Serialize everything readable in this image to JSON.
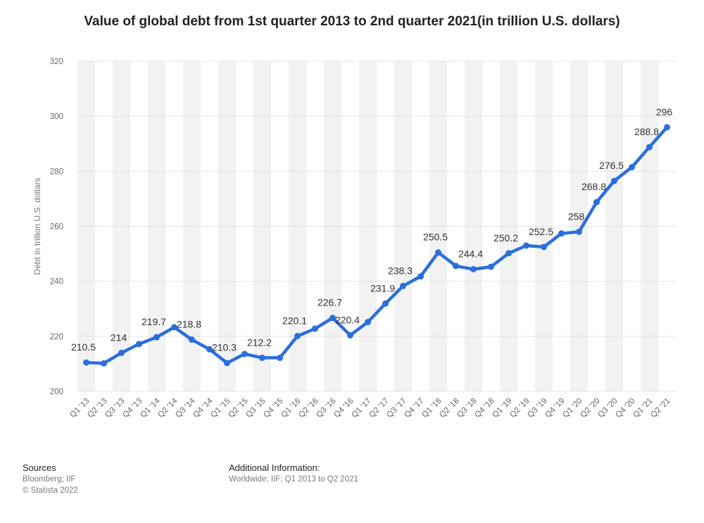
{
  "title": "Value of global debt from 1st quarter 2013 to 2nd quarter 2021(in trillion U.S. dollars)",
  "footer": {
    "sources_heading": "Sources",
    "sources_text": "Bloomberg; IIF",
    "copyright": "© Statista 2022",
    "additional_heading": "Additional Information:",
    "additional_text": "Worldwide; IIF; Q1 2013 to Q2 2021"
  },
  "chart_data": {
    "type": "line",
    "title": "Value of global debt from 1st quarter 2013 to 2nd quarter 2021(in trillion U.S. dollars)",
    "xlabel": "",
    "ylabel": "Debt in trillion U.S. dollars",
    "ylim": [
      200,
      320
    ],
    "yticks": [
      200,
      220,
      240,
      260,
      280,
      300,
      320
    ],
    "grid": true,
    "line_color": "#2a6fdb",
    "categories": [
      "Q1 '13",
      "Q2 '13",
      "Q3 '13",
      "Q4 '13",
      "Q1 '14",
      "Q2 '14",
      "Q3 '14",
      "Q4 '14",
      "Q1 '15",
      "Q2 '15",
      "Q3 '15",
      "Q4 '15",
      "Q1 '16",
      "Q2 '16",
      "Q3 '16",
      "Q4 '16",
      "Q1 '17",
      "Q2 '17",
      "Q3 '17",
      "Q4 '17",
      "Q1 '18",
      "Q2 '18",
      "Q3 '18",
      "Q4 '18",
      "Q1 '19",
      "Q2 '19",
      "Q3 '19",
      "Q4 '19",
      "Q1 '20",
      "Q2 '20",
      "Q3 '20",
      "Q4 '20",
      "Q1 '21",
      "Q2 '21"
    ],
    "values": [
      210.5,
      210.2,
      214,
      217.2,
      219.7,
      223.3,
      218.8,
      215.3,
      210.3,
      213.6,
      212.2,
      212.2,
      220.1,
      222.8,
      226.7,
      220.4,
      225.2,
      231.9,
      238.3,
      241.8,
      250.5,
      245.6,
      244.4,
      245.3,
      250.2,
      253,
      252.5,
      257.4,
      258,
      268.8,
      276.5,
      281.5,
      288.8,
      296
    ],
    "data_labels": [
      {
        "index": 0,
        "text": "210.5"
      },
      {
        "index": 2,
        "text": "214"
      },
      {
        "index": 4,
        "text": "219.7"
      },
      {
        "index": 6,
        "text": "218.8"
      },
      {
        "index": 8,
        "text": "210.3"
      },
      {
        "index": 10,
        "text": "212.2"
      },
      {
        "index": 12,
        "text": "220.1"
      },
      {
        "index": 14,
        "text": "226.7"
      },
      {
        "index": 15,
        "text": "220.4"
      },
      {
        "index": 17,
        "text": "231.9"
      },
      {
        "index": 18,
        "text": "238.3"
      },
      {
        "index": 20,
        "text": "250.5"
      },
      {
        "index": 22,
        "text": "244.4"
      },
      {
        "index": 24,
        "text": "250.2"
      },
      {
        "index": 26,
        "text": "252.5"
      },
      {
        "index": 28,
        "text": "258"
      },
      {
        "index": 29,
        "text": "268.8"
      },
      {
        "index": 30,
        "text": "276.5"
      },
      {
        "index": 32,
        "text": "288.8"
      },
      {
        "index": 33,
        "text": "296"
      }
    ]
  }
}
